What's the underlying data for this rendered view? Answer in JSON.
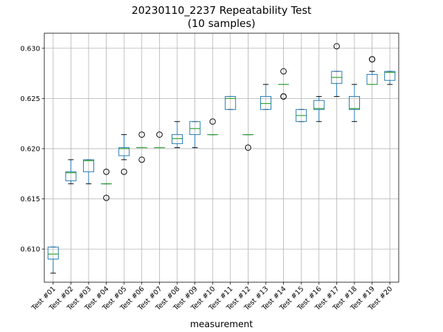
{
  "chart_data": {
    "type": "box",
    "title_line1": "20230110_2237 Repeatability Test",
    "title_line2": "(10 samples)",
    "xlabel": "measurement",
    "ylabel": "",
    "ylim": [
      0.6067,
      0.6315
    ],
    "yticks": [
      "0.610",
      "0.615",
      "0.620",
      "0.625",
      "0.630"
    ],
    "grid": true,
    "categories": [
      "Test #01",
      "Test #02",
      "Test #03",
      "Test #04",
      "Test #05",
      "Test #06",
      "Test #07",
      "Test #08",
      "Test #09",
      "Test #10",
      "Test #11",
      "Test #12",
      "Test #13",
      "Test #14",
      "Test #15",
      "Test #16",
      "Test #17",
      "Test #18",
      "Test #19",
      "Test #20"
    ],
    "boxes": [
      {
        "whislo": 0.6076,
        "q1": 0.609,
        "med": 0.6095,
        "q3": 0.6102,
        "whishi": 0.6102,
        "fliers": []
      },
      {
        "whislo": 0.6165,
        "q1": 0.6168,
        "med": 0.6176,
        "q3": 0.6177,
        "whishi": 0.6189,
        "fliers": []
      },
      {
        "whislo": 0.6165,
        "q1": 0.6177,
        "med": 0.6188,
        "q3": 0.6189,
        "whishi": 0.6189,
        "fliers": []
      },
      {
        "whislo": 0.6165,
        "q1": 0.6165,
        "med": 0.6165,
        "q3": 0.6165,
        "whishi": 0.6165,
        "fliers": [
          0.6151,
          0.6177
        ]
      },
      {
        "whislo": 0.6189,
        "q1": 0.6193,
        "med": 0.62,
        "q3": 0.6201,
        "whishi": 0.6214,
        "fliers": [
          0.6177
        ]
      },
      {
        "whislo": 0.6201,
        "q1": 0.6201,
        "med": 0.6201,
        "q3": 0.6201,
        "whishi": 0.6201,
        "fliers": [
          0.6189,
          0.6214
        ]
      },
      {
        "whislo": 0.6201,
        "q1": 0.6201,
        "med": 0.6201,
        "q3": 0.6201,
        "whishi": 0.6201,
        "fliers": [
          0.6214
        ]
      },
      {
        "whislo": 0.6201,
        "q1": 0.6205,
        "med": 0.621,
        "q3": 0.6214,
        "whishi": 0.6227,
        "fliers": []
      },
      {
        "whislo": 0.6201,
        "q1": 0.6214,
        "med": 0.622,
        "q3": 0.6227,
        "whishi": 0.6227,
        "fliers": []
      },
      {
        "whislo": 0.6214,
        "q1": 0.6214,
        "med": 0.6214,
        "q3": 0.6214,
        "whishi": 0.6214,
        "fliers": [
          0.6227
        ]
      },
      {
        "whislo": 0.6239,
        "q1": 0.6239,
        "med": 0.625,
        "q3": 0.6252,
        "whishi": 0.6252,
        "fliers": []
      },
      {
        "whislo": 0.6214,
        "q1": 0.6214,
        "med": 0.6214,
        "q3": 0.6214,
        "whishi": 0.6214,
        "fliers": [
          0.6201
        ]
      },
      {
        "whislo": 0.6239,
        "q1": 0.6239,
        "med": 0.6245,
        "q3": 0.6252,
        "whishi": 0.6264,
        "fliers": []
      },
      {
        "whislo": 0.6264,
        "q1": 0.6264,
        "med": 0.6264,
        "q3": 0.6264,
        "whishi": 0.6264,
        "fliers": [
          0.6252,
          0.6252,
          0.6277
        ]
      },
      {
        "whislo": 0.6227,
        "q1": 0.6227,
        "med": 0.6233,
        "q3": 0.6239,
        "whishi": 0.6239,
        "fliers": []
      },
      {
        "whislo": 0.6227,
        "q1": 0.6239,
        "med": 0.624,
        "q3": 0.6248,
        "whishi": 0.6252,
        "fliers": []
      },
      {
        "whislo": 0.6252,
        "q1": 0.6265,
        "med": 0.6271,
        "q3": 0.6277,
        "whishi": 0.6277,
        "fliers": [
          0.6302
        ]
      },
      {
        "whislo": 0.6227,
        "q1": 0.6239,
        "med": 0.624,
        "q3": 0.6252,
        "whishi": 0.6264,
        "fliers": []
      },
      {
        "whislo": 0.6264,
        "q1": 0.6264,
        "med": 0.6264,
        "q3": 0.6274,
        "whishi": 0.6277,
        "fliers": [
          0.6289,
          0.6289
        ]
      },
      {
        "whislo": 0.6264,
        "q1": 0.6268,
        "med": 0.6276,
        "q3": 0.6277,
        "whishi": 0.6277,
        "fliers": []
      }
    ],
    "colors": {
      "box": "#1f77b4",
      "median": "#2ca02c",
      "whisker": "#000000",
      "grid": "#b0b0b0",
      "flier": "#000000"
    }
  }
}
